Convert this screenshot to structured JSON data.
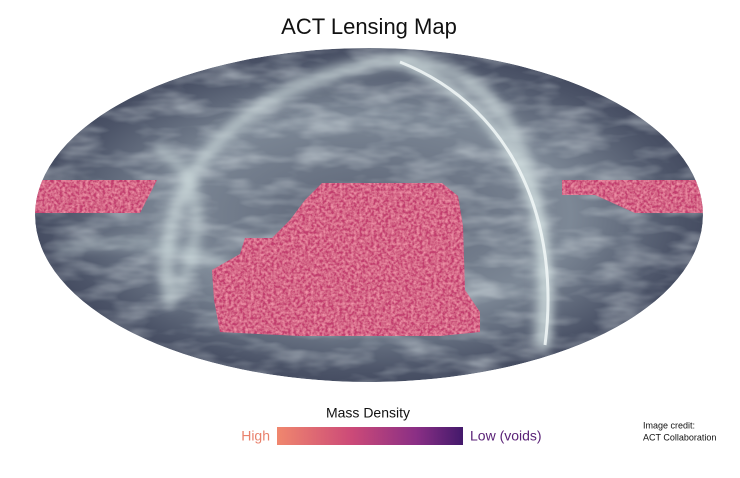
{
  "title": "ACT Lensing Map",
  "colorbar": {
    "title": "Mass Density",
    "low_label": "High",
    "high_label": "Low (voids)"
  },
  "credit": {
    "line1": "Image credit:",
    "line2": "ACT Collaboration"
  }
}
